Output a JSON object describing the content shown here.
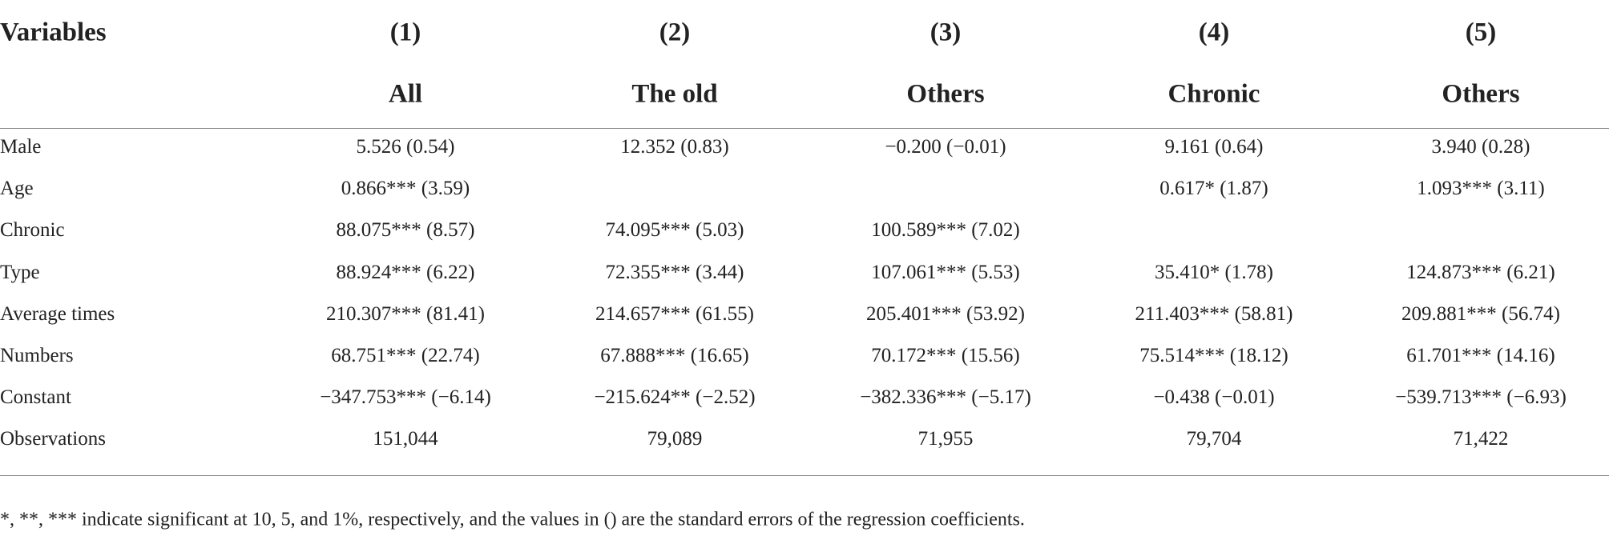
{
  "table": {
    "header": {
      "variables_label": "Variables",
      "numbers": [
        "(1)",
        "(2)",
        "(3)",
        "(4)",
        "(5)"
      ],
      "groups": [
        "All",
        "The old",
        "Others",
        "Chronic",
        "Others"
      ]
    },
    "rows": [
      [
        "Male",
        "5.526 (0.54)",
        "12.352 (0.83)",
        "−0.200 (−0.01)",
        "9.161 (0.64)",
        "3.940 (0.28)"
      ],
      [
        "Age",
        "0.866*** (3.59)",
        null,
        null,
        "0.617* (1.87)",
        "1.093*** (3.11)"
      ],
      [
        "Chronic",
        "88.075*** (8.57)",
        "74.095*** (5.03)",
        "100.589*** (7.02)",
        null,
        null
      ],
      [
        "Type",
        "88.924*** (6.22)",
        "72.355*** (3.44)",
        "107.061*** (5.53)",
        "35.410* (1.78)",
        "124.873*** (6.21)"
      ],
      [
        "Average times",
        "210.307*** (81.41)",
        "214.657*** (61.55)",
        "205.401*** (53.92)",
        "211.403*** (58.81)",
        "209.881*** (56.74)"
      ],
      [
        "Numbers",
        "68.751*** (22.74)",
        "67.888*** (16.65)",
        "70.172*** (15.56)",
        "75.514*** (18.12)",
        "61.701*** (14.16)"
      ],
      [
        "Constant",
        "−347.753*** (−6.14)",
        "−215.624** (−2.52)",
        "−382.336*** (−5.17)",
        "−0.438 (−0.01)",
        "−539.713*** (−6.93)"
      ],
      [
        "Observations",
        "151,044",
        "79,089",
        "71,955",
        "79,704",
        "71,422"
      ]
    ],
    "footnote": "*, **, *** indicate significant at 10, 5, and 1%, respectively, and the values in () are the standard errors of the regression coefficients."
  }
}
